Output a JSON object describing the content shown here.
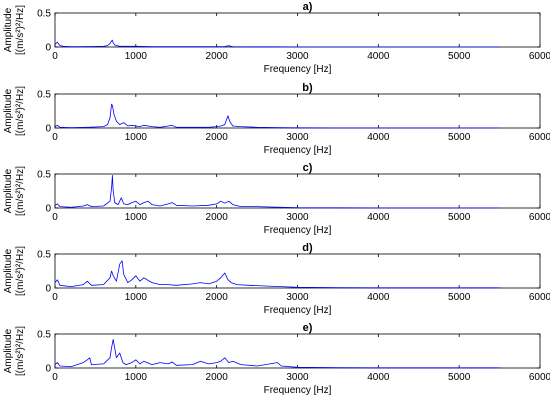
{
  "chart_data": [
    {
      "type": "line",
      "title": "a)",
      "xlabel": "Frequency [Hz]",
      "ylabel": [
        "Amplitude",
        "[(m/s²)²/Hz]"
      ],
      "xlim": [
        0,
        6000
      ],
      "ylim": [
        0,
        0.5
      ],
      "xticks": [
        "0",
        "1000",
        "2000",
        "3000",
        "4000",
        "5000",
        "6000"
      ],
      "yticks": [
        "0",
        "0.5"
      ],
      "color": "#0000ff",
      "grid": false,
      "x": [
        0,
        30,
        60,
        100,
        200,
        300,
        450,
        600,
        650,
        680,
        700,
        710,
        720,
        740,
        760,
        800,
        900,
        1000,
        1200,
        1400,
        1600,
        1800,
        2000,
        2100,
        2150,
        2160,
        2200,
        2400,
        2700,
        3000,
        3500,
        4000,
        4500,
        5000,
        5500
      ],
      "y": [
        0.04,
        0.07,
        0.02,
        0.01,
        0.005,
        0.005,
        0.008,
        0.01,
        0.02,
        0.05,
        0.09,
        0.1,
        0.06,
        0.03,
        0.02,
        0.01,
        0.01,
        0.01,
        0.005,
        0.005,
        0.005,
        0.005,
        0.005,
        0.008,
        0.02,
        0.015,
        0.005,
        0.003,
        0.003,
        0.002,
        0.002,
        0.002,
        0.002,
        0.002,
        0.002
      ]
    },
    {
      "type": "line",
      "title": "b)",
      "xlabel": "Frequency [Hz]",
      "ylabel": [
        "Amplitude",
        "[(m/s²)²/Hz]"
      ],
      "xlim": [
        0,
        6000
      ],
      "ylim": [
        0,
        0.5
      ],
      "xticks": [
        "0",
        "1000",
        "2000",
        "3000",
        "4000",
        "5000",
        "6000"
      ],
      "yticks": [
        "0",
        "0.5"
      ],
      "color": "#0000ff",
      "grid": false,
      "x": [
        0,
        30,
        60,
        200,
        400,
        600,
        650,
        680,
        700,
        710,
        730,
        760,
        800,
        850,
        900,
        950,
        1000,
        1050,
        1100,
        1200,
        1300,
        1400,
        1450,
        1500,
        1700,
        1900,
        2000,
        2050,
        2100,
        2140,
        2160,
        2200,
        2300,
        2500,
        2800,
        3000,
        3500,
        4000,
        4500,
        5000,
        5500
      ],
      "y": [
        0.02,
        0.04,
        0.01,
        0.005,
        0.01,
        0.02,
        0.05,
        0.15,
        0.35,
        0.33,
        0.2,
        0.1,
        0.05,
        0.08,
        0.03,
        0.04,
        0.03,
        0.02,
        0.04,
        0.02,
        0.01,
        0.03,
        0.04,
        0.01,
        0.01,
        0.01,
        0.02,
        0.03,
        0.05,
        0.18,
        0.1,
        0.03,
        0.02,
        0.01,
        0.005,
        0.003,
        0.002,
        0.002,
        0.002,
        0.002,
        0.002
      ]
    },
    {
      "type": "line",
      "title": "c)",
      "xlabel": "Frequency [Hz]",
      "ylabel": [
        "Amplitude",
        "[(m/s²)²/Hz]"
      ],
      "xlim": [
        0,
        6000
      ],
      "ylim": [
        0,
        0.5
      ],
      "xticks": [
        "0",
        "1000",
        "2000",
        "3000",
        "4000",
        "5000",
        "6000"
      ],
      "yticks": [
        "0",
        "0.5"
      ],
      "color": "#0000ff",
      "grid": false,
      "x": [
        0,
        30,
        60,
        200,
        350,
        400,
        450,
        600,
        680,
        700,
        710,
        720,
        740,
        780,
        820,
        850,
        900,
        950,
        1000,
        1050,
        1100,
        1150,
        1200,
        1300,
        1400,
        1450,
        1500,
        1700,
        1900,
        2000,
        2050,
        2100,
        2150,
        2200,
        2300,
        2500,
        2800,
        3000,
        3500,
        4000,
        4500,
        5000,
        5500
      ],
      "y": [
        0.04,
        0.06,
        0.02,
        0.01,
        0.03,
        0.05,
        0.02,
        0.03,
        0.1,
        0.3,
        0.48,
        0.25,
        0.08,
        0.05,
        0.15,
        0.06,
        0.05,
        0.08,
        0.1,
        0.05,
        0.08,
        0.1,
        0.05,
        0.03,
        0.06,
        0.08,
        0.04,
        0.03,
        0.04,
        0.06,
        0.1,
        0.07,
        0.1,
        0.05,
        0.02,
        0.02,
        0.01,
        0.005,
        0.003,
        0.002,
        0.002,
        0.002,
        0.002
      ]
    },
    {
      "type": "line",
      "title": "d)",
      "xlabel": "Frequency [Hz]",
      "ylabel": [
        "Amplitude",
        "[(m/s²)²/Hz]"
      ],
      "xlim": [
        0,
        6000
      ],
      "ylim": [
        0,
        0.5
      ],
      "xticks": [
        "0",
        "1000",
        "2000",
        "3000",
        "4000",
        "5000",
        "6000"
      ],
      "yticks": [
        "0",
        "0.5"
      ],
      "color": "#0000ff",
      "grid": false,
      "x": [
        0,
        30,
        60,
        200,
        350,
        400,
        450,
        600,
        680,
        700,
        720,
        760,
        800,
        830,
        850,
        900,
        950,
        1000,
        1050,
        1100,
        1200,
        1300,
        1400,
        1500,
        1700,
        1800,
        1900,
        2000,
        2050,
        2100,
        2140,
        2180,
        2250,
        2400,
        2600,
        2800,
        3000,
        3500,
        4000,
        4500,
        5000,
        5500
      ],
      "y": [
        0.08,
        0.12,
        0.04,
        0.02,
        0.05,
        0.1,
        0.04,
        0.05,
        0.15,
        0.25,
        0.18,
        0.1,
        0.35,
        0.4,
        0.2,
        0.08,
        0.12,
        0.18,
        0.1,
        0.15,
        0.08,
        0.05,
        0.05,
        0.04,
        0.06,
        0.08,
        0.06,
        0.1,
        0.15,
        0.22,
        0.12,
        0.08,
        0.05,
        0.04,
        0.03,
        0.02,
        0.01,
        0.005,
        0.003,
        0.003,
        0.003,
        0.003
      ]
    },
    {
      "type": "line",
      "title": "e)",
      "xlabel": "Frequency [Hz]",
      "ylabel": [
        "Amplitude",
        "[(m/s²)²/Hz]"
      ],
      "xlim": [
        0,
        6000
      ],
      "ylim": [
        0,
        0.5
      ],
      "xticks": [
        "0",
        "1000",
        "2000",
        "3000",
        "4000",
        "5000",
        "6000"
      ],
      "yticks": [
        "0",
        "0.5"
      ],
      "color": "#0000ff",
      "grid": false,
      "x": [
        0,
        30,
        60,
        200,
        350,
        400,
        430,
        450,
        600,
        680,
        700,
        720,
        760,
        800,
        840,
        880,
        950,
        1000,
        1050,
        1100,
        1200,
        1300,
        1400,
        1450,
        1500,
        1700,
        1800,
        1900,
        2000,
        2050,
        2100,
        2150,
        2200,
        2300,
        2500,
        2750,
        2800,
        3000,
        3500,
        4000,
        4500,
        5000,
        5500
      ],
      "y": [
        0.05,
        0.08,
        0.03,
        0.02,
        0.08,
        0.12,
        0.15,
        0.05,
        0.06,
        0.15,
        0.3,
        0.42,
        0.15,
        0.22,
        0.08,
        0.05,
        0.08,
        0.12,
        0.06,
        0.1,
        0.05,
        0.08,
        0.06,
        0.09,
        0.04,
        0.05,
        0.1,
        0.06,
        0.08,
        0.1,
        0.15,
        0.08,
        0.1,
        0.05,
        0.03,
        0.08,
        0.03,
        0.01,
        0.005,
        0.003,
        0.003,
        0.003,
        0.003
      ]
    }
  ]
}
